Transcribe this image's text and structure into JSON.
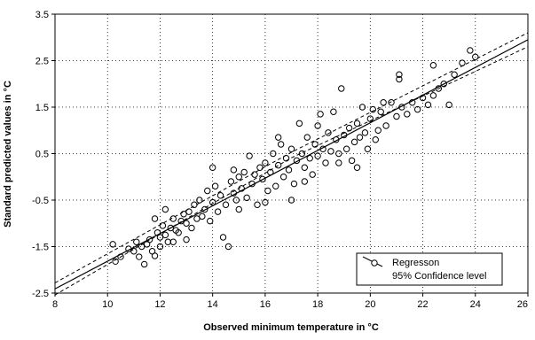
{
  "chart_data": {
    "type": "scatter",
    "title": "",
    "xlabel": "Observed minimum temperature in °C",
    "ylabel": "Standard predicted values in °C",
    "xlim": [
      8,
      26
    ],
    "ylim": [
      -2.5,
      3.5
    ],
    "x_ticks": [
      8,
      10,
      12,
      14,
      16,
      18,
      20,
      22,
      24,
      26
    ],
    "x_tick_labels": [
      "8",
      "10",
      "12",
      "14",
      "16",
      "18",
      "20",
      "22",
      "24",
      "26"
    ],
    "y_ticks": [
      -2.5,
      -1.5,
      -0.5,
      0.5,
      1.5,
      2.5,
      3.5
    ],
    "y_tick_labels": [
      "-2.5",
      "-1.5",
      "-0.5",
      "0.5",
      "1.5",
      "2.5",
      "3.5"
    ],
    "grid": "dotted",
    "legend_position": "bottom-right",
    "legend": [
      "Regresson",
      "95% Confidence level"
    ],
    "regression_line": {
      "x": [
        8,
        26
      ],
      "y": [
        -2.41,
        2.95
      ]
    },
    "confidence_upper": {
      "x": [
        8,
        17,
        26
      ],
      "y": [
        -2.28,
        0.53,
        3.1
      ]
    },
    "confidence_lower": {
      "x": [
        8,
        17,
        26
      ],
      "y": [
        -2.54,
        0.41,
        2.8
      ]
    },
    "points": [
      [
        10.2,
        -1.45
      ],
      [
        10.3,
        -1.82
      ],
      [
        10.5,
        -1.72
      ],
      [
        10.8,
        -1.55
      ],
      [
        11.0,
        -1.6
      ],
      [
        11.1,
        -1.4
      ],
      [
        11.2,
        -1.72
      ],
      [
        11.3,
        -1.5
      ],
      [
        11.4,
        -1.88
      ],
      [
        11.5,
        -1.45
      ],
      [
        11.6,
        -1.35
      ],
      [
        11.7,
        -1.6
      ],
      [
        11.8,
        -1.7
      ],
      [
        11.9,
        -1.2
      ],
      [
        12.0,
        -1.5
      ],
      [
        12.0,
        -1.3
      ],
      [
        12.1,
        -1.05
      ],
      [
        12.2,
        -1.25
      ],
      [
        12.2,
        -0.7
      ],
      [
        12.3,
        -1.4
      ],
      [
        12.4,
        -1.1
      ],
      [
        12.5,
        -0.9
      ],
      [
        12.6,
        -1.15
      ],
      [
        12.7,
        -1.2
      ],
      [
        12.8,
        -0.95
      ],
      [
        12.9,
        -0.8
      ],
      [
        13.0,
        -1.0
      ],
      [
        13.1,
        -0.75
      ],
      [
        13.2,
        -1.1
      ],
      [
        13.3,
        -0.6
      ],
      [
        13.4,
        -0.9
      ],
      [
        13.5,
        -0.5
      ],
      [
        13.6,
        -0.85
      ],
      [
        13.7,
        -0.7
      ],
      [
        13.8,
        -0.3
      ],
      [
        13.9,
        -0.95
      ],
      [
        14.0,
        -0.55
      ],
      [
        14.0,
        0.2
      ],
      [
        14.1,
        -0.2
      ],
      [
        14.2,
        -0.75
      ],
      [
        14.3,
        -0.4
      ],
      [
        14.4,
        -1.3
      ],
      [
        14.5,
        -0.6
      ],
      [
        14.6,
        -1.5
      ],
      [
        14.7,
        -0.1
      ],
      [
        14.8,
        -0.35
      ],
      [
        14.9,
        -0.5
      ],
      [
        15.0,
        0.0
      ],
      [
        15.1,
        -0.25
      ],
      [
        15.2,
        0.1
      ],
      [
        15.3,
        -0.45
      ],
      [
        15.4,
        0.45
      ],
      [
        15.5,
        -0.15
      ],
      [
        15.6,
        0.05
      ],
      [
        15.7,
        -0.6
      ],
      [
        15.8,
        0.2
      ],
      [
        15.9,
        -0.05
      ],
      [
        16.0,
        0.3
      ],
      [
        16.1,
        -0.3
      ],
      [
        16.2,
        0.1
      ],
      [
        16.3,
        0.5
      ],
      [
        16.4,
        -0.2
      ],
      [
        16.5,
        0.25
      ],
      [
        16.6,
        0.7
      ],
      [
        16.7,
        0.0
      ],
      [
        16.8,
        0.4
      ],
      [
        16.9,
        0.15
      ],
      [
        17.0,
        0.6
      ],
      [
        17.1,
        -0.15
      ],
      [
        17.2,
        0.35
      ],
      [
        17.3,
        1.15
      ],
      [
        17.4,
        0.5
      ],
      [
        17.5,
        0.2
      ],
      [
        17.6,
        0.85
      ],
      [
        17.7,
        0.4
      ],
      [
        17.8,
        0.05
      ],
      [
        17.9,
        0.7
      ],
      [
        18.0,
        0.45
      ],
      [
        18.1,
        1.35
      ],
      [
        18.2,
        0.6
      ],
      [
        18.3,
        0.3
      ],
      [
        18.4,
        0.95
      ],
      [
        18.5,
        0.55
      ],
      [
        18.6,
        1.4
      ],
      [
        18.7,
        0.8
      ],
      [
        18.8,
        0.5
      ],
      [
        18.9,
        1.9
      ],
      [
        19.0,
        0.9
      ],
      [
        19.1,
        0.6
      ],
      [
        19.2,
        1.05
      ],
      [
        19.3,
        0.35
      ],
      [
        19.4,
        0.75
      ],
      [
        19.5,
        1.15
      ],
      [
        19.6,
        0.85
      ],
      [
        19.7,
        1.5
      ],
      [
        19.8,
        0.95
      ],
      [
        19.9,
        0.6
      ],
      [
        20.0,
        1.25
      ],
      [
        20.1,
        1.45
      ],
      [
        20.2,
        0.8
      ],
      [
        20.3,
        1.0
      ],
      [
        20.4,
        1.4
      ],
      [
        20.6,
        1.1
      ],
      [
        20.8,
        1.6
      ],
      [
        21.0,
        1.3
      ],
      [
        21.2,
        1.5
      ],
      [
        21.4,
        1.35
      ],
      [
        21.6,
        1.6
      ],
      [
        21.8,
        1.45
      ],
      [
        22.0,
        1.7
      ],
      [
        22.2,
        1.55
      ],
      [
        22.4,
        2.4
      ],
      [
        22.6,
        1.9
      ],
      [
        22.8,
        2.0
      ],
      [
        23.0,
        1.55
      ],
      [
        23.2,
        2.2
      ],
      [
        23.5,
        2.45
      ],
      [
        23.8,
        2.72
      ],
      [
        24.0,
        2.58
      ],
      [
        21.1,
        2.2
      ],
      [
        21.1,
        2.1
      ],
      [
        22.4,
        1.75
      ],
      [
        16.5,
        0.85
      ],
      [
        15.0,
        -0.7
      ],
      [
        13.0,
        -1.35
      ],
      [
        17.0,
        -0.5
      ],
      [
        18.0,
        1.1
      ],
      [
        19.5,
        0.2
      ],
      [
        20.5,
        1.6
      ],
      [
        14.8,
        0.15
      ],
      [
        16.0,
        -0.55
      ],
      [
        12.5,
        -1.4
      ],
      [
        11.8,
        -0.9
      ],
      [
        17.5,
        -0.1
      ],
      [
        18.8,
        0.3
      ]
    ]
  }
}
